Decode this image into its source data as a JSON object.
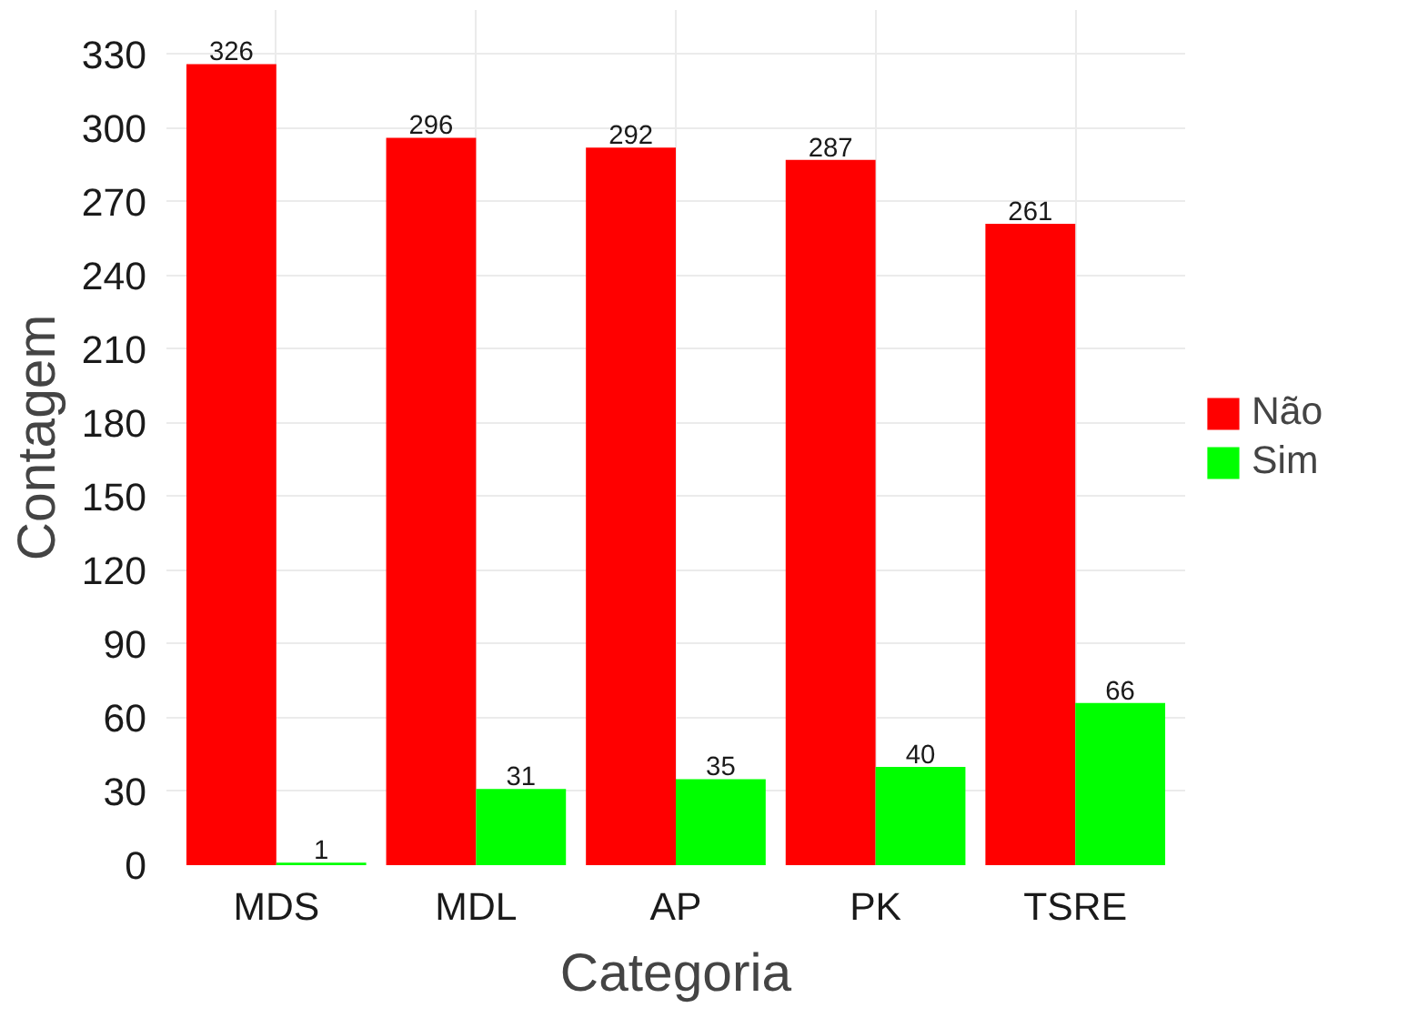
{
  "chart_data": {
    "type": "bar",
    "xlabel": "Categoria",
    "ylabel": "Contagem",
    "categories": [
      "MDS",
      "MDL",
      "AP",
      "PK",
      "TSRE"
    ],
    "series": [
      {
        "name": "Não",
        "color": "#ff0000",
        "values": [
          326,
          296,
          292,
          287,
          261
        ]
      },
      {
        "name": "Sim",
        "color": "#00ff00",
        "values": [
          1,
          31,
          35,
          40,
          66
        ]
      }
    ],
    "ylim": [
      0,
      348
    ],
    "yticks": [
      0,
      30,
      60,
      90,
      120,
      150,
      180,
      210,
      240,
      270,
      300,
      330
    ],
    "grid": true,
    "legend": "right",
    "data_labels": true
  }
}
